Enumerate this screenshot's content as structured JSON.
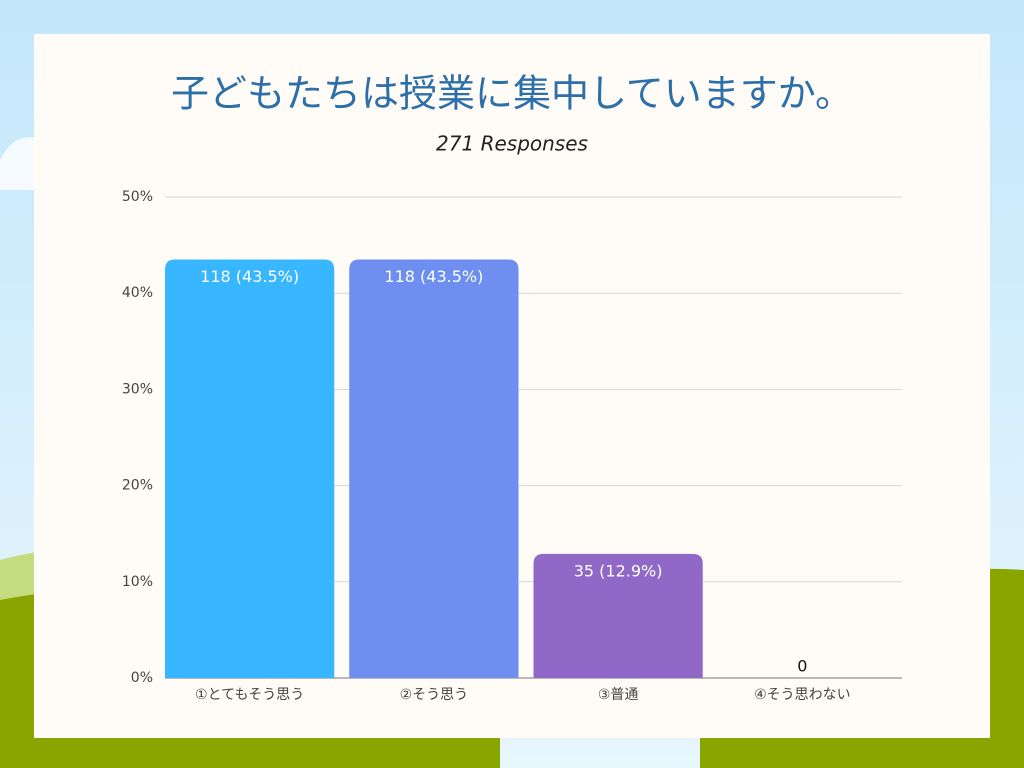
{
  "chart_data": {
    "type": "bar",
    "title": "子どもたちは授業に集中していますか。",
    "subtitle": "271 Responses",
    "categories": [
      "①とてもそう思う",
      "②そう思う",
      "③普通",
      "④そう思わない"
    ],
    "values": [
      43.5,
      43.5,
      12.9,
      0
    ],
    "value_labels": [
      "118 (43.5%)",
      "118 (43.5%)",
      "35 (12.9%)",
      "0"
    ],
    "colors": [
      "#38b6ff",
      "#6e8fef",
      "#9068c8",
      "#9068c8"
    ],
    "ylim": [
      0,
      50
    ],
    "yticks": [
      {
        "value": 0,
        "label": "0%"
      },
      {
        "value": 10,
        "label": "10%"
      },
      {
        "value": 20,
        "label": "20%"
      },
      {
        "value": 30,
        "label": "30%"
      },
      {
        "value": 40,
        "label": "40%"
      },
      {
        "value": 50,
        "label": "50%"
      }
    ],
    "grid": true
  }
}
